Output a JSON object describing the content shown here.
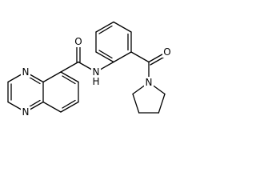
{
  "atoms": {
    "quinoxaline_n1": "N",
    "quinoxaline_n4": "N",
    "amide_o": "O",
    "amide_n": "N",
    "amide_h": "H",
    "ketone_o": "O",
    "pyrrolidine_n": "N"
  }
}
